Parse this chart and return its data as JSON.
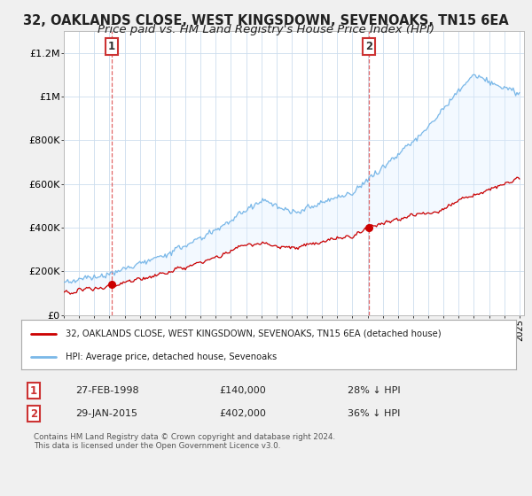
{
  "title": "32, OAKLANDS CLOSE, WEST KINGSDOWN, SEVENOAKS, TN15 6EA",
  "subtitle": "Price paid vs. HM Land Registry's House Price Index (HPI)",
  "ylim": [
    0,
    1300000
  ],
  "yticks": [
    0,
    200000,
    400000,
    600000,
    800000,
    1000000,
    1200000
  ],
  "ytick_labels": [
    "£0",
    "£200K",
    "£400K",
    "£600K",
    "£800K",
    "£1M",
    "£1.2M"
  ],
  "hpi_color": "#7ab8e8",
  "price_color": "#cc0000",
  "fill_color": "#ddeeff",
  "vline_color": "#dd4444",
  "legend_line1": "32, OAKLANDS CLOSE, WEST KINGSDOWN, SEVENOAKS, TN15 6EA (detached house)",
  "legend_line2": "HPI: Average price, detached house, Sevenoaks",
  "note1_label": "1",
  "note1_date": "27-FEB-1998",
  "note1_price": "£140,000",
  "note1_hpi": "28% ↓ HPI",
  "note2_label": "2",
  "note2_date": "29-JAN-2015",
  "note2_price": "£402,000",
  "note2_hpi": "36% ↓ HPI",
  "footer": "Contains HM Land Registry data © Crown copyright and database right 2024.\nThis data is licensed under the Open Government Licence v3.0.",
  "bg_color": "#f0f0f0",
  "plot_bg_color": "#ffffff",
  "grid_color": "#ccddee",
  "title_fontsize": 10.5,
  "subtitle_fontsize": 9.5,
  "sale1_year": 1998.16,
  "sale1_price": 140000,
  "sale2_year": 2015.08,
  "sale2_price": 402000
}
